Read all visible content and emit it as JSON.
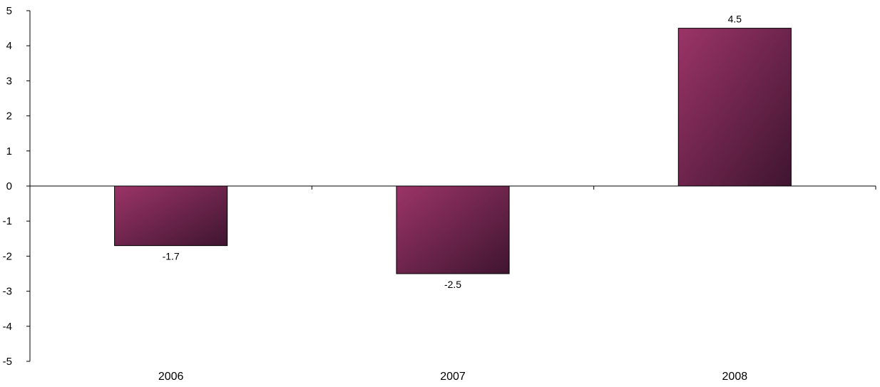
{
  "chart_data": {
    "type": "bar",
    "title": "",
    "xlabel": "",
    "ylabel": "",
    "categories": [
      "2006",
      "2007",
      "2008"
    ],
    "values": [
      -1.7,
      -2.5,
      4.5
    ],
    "data_labels": [
      "-1.7",
      "-2.5",
      "4.5"
    ],
    "ylim": [
      -5,
      5
    ],
    "yticks": [
      "-5",
      "-4",
      "-3",
      "-2",
      "-1",
      "0",
      "1",
      "2",
      "3",
      "4",
      "5"
    ],
    "grid": false,
    "legend": "none",
    "colors": {
      "bar_light": "#9b3468",
      "bar_dark": "#3f1530"
    }
  }
}
